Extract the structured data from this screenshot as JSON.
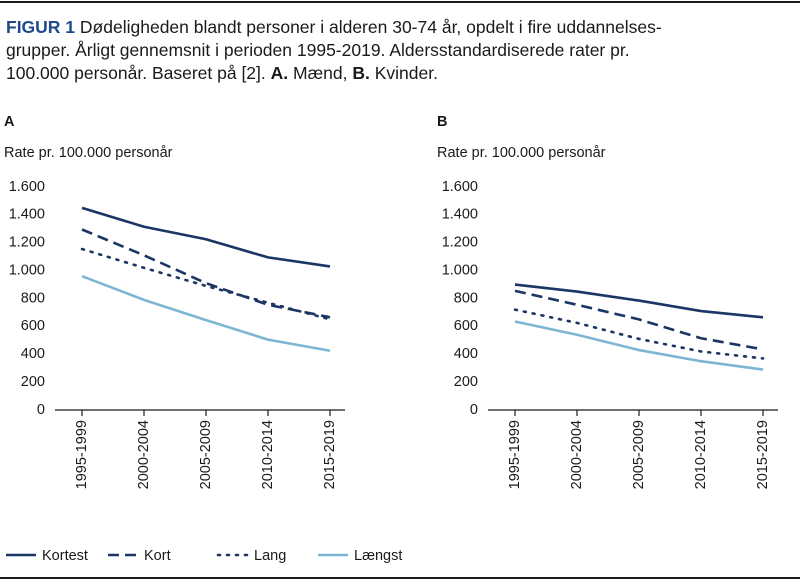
{
  "figure": {
    "label": "FIGUR 1",
    "lines": [
      "Dødeligheden blandt personer i alderen 30-74 år, opdelt i fire uddannelses-",
      "grupper. Årligt gennemsnit i perioden 1995-2019. Aldersstandardiserede rater pr.",
      "100.000 personår. Baseret på [2]."
    ],
    "parts": [
      "A.",
      "Mænd,",
      "B.",
      "Kvinder."
    ]
  },
  "chart_data": [
    {
      "type": "line",
      "title": "A",
      "y_label": "Rate pr. 100.000 personår",
      "categories": [
        "1995-1999",
        "2000-2004",
        "2005-2009",
        "2010-2014",
        "2015-2019"
      ],
      "ylim": [
        0,
        1600
      ],
      "yticks": [
        0,
        200,
        400,
        600,
        800,
        {
          "value": 1000,
          "label": "1.000"
        },
        {
          "value": 1200,
          "label": "1.200"
        },
        {
          "value": 1400,
          "label": "1.400"
        },
        {
          "value": 1600,
          "label": "1.600"
        }
      ],
      "series": [
        {
          "name": "Kortest",
          "color": "#1b3564",
          "dash": "solid",
          "values": [
            1450,
            1315,
            1225,
            1095,
            1030
          ]
        },
        {
          "name": "Kort",
          "color": "#1b3564",
          "dash": "dashed",
          "values": [
            1295,
            1110,
            910,
            755,
            665
          ]
        },
        {
          "name": "Lang",
          "color": "#1b3564",
          "dash": "dotted",
          "values": [
            1155,
            1020,
            890,
            770,
            650
          ]
        },
        {
          "name": "Længst",
          "color": "#7db6d3",
          "dash": "solid",
          "values": [
            960,
            790,
            645,
            505,
            425
          ]
        }
      ]
    },
    {
      "type": "line",
      "title": "B",
      "y_label": "Rate pr. 100.000 personår",
      "categories": [
        "1995-1999",
        "2000-2004",
        "2005-2009",
        "2010-2014",
        "2015-2019"
      ],
      "ylim": [
        0,
        1600
      ],
      "yticks": [
        0,
        200,
        400,
        600,
        800,
        {
          "value": 1000,
          "label": "1.000"
        },
        {
          "value": 1200,
          "label": "1.200"
        },
        {
          "value": 1400,
          "label": "1.400"
        },
        {
          "value": 1600,
          "label": "1.600"
        }
      ],
      "series": [
        {
          "color": "#1b3564",
          "dash": "solid",
          "values": [
            900,
            850,
            785,
            710,
            665
          ]
        },
        {
          "color": "#1b3564",
          "dash": "dashed",
          "values": [
            855,
            755,
            650,
            515,
            435
          ]
        },
        {
          "color": "#1b3564",
          "dash": "dotted",
          "values": [
            720,
            625,
            510,
            420,
            370
          ]
        },
        {
          "color": "#7db6d3",
          "dash": "solid",
          "values": [
            635,
            540,
            430,
            350,
            290
          ]
        }
      ]
    }
  ]
}
